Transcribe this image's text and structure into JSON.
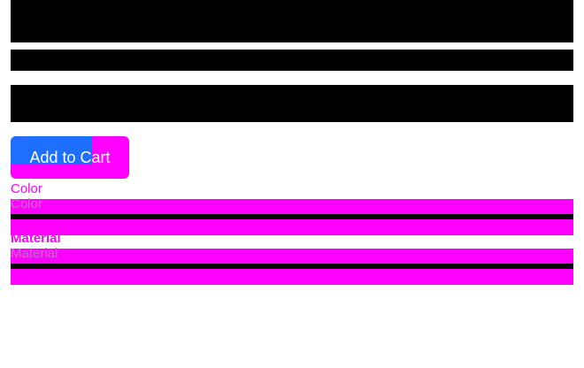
{
  "product": {
    "add_to_cart_label": "Add to Cart"
  },
  "options": {
    "color": {
      "label": "Color",
      "sublabel": "Color"
    },
    "material": {
      "label": "Material",
      "sublabel": "Material"
    }
  },
  "colors": {
    "accent": "#ff00ff",
    "button_accent": "#1e6fff",
    "block": "#000000"
  }
}
